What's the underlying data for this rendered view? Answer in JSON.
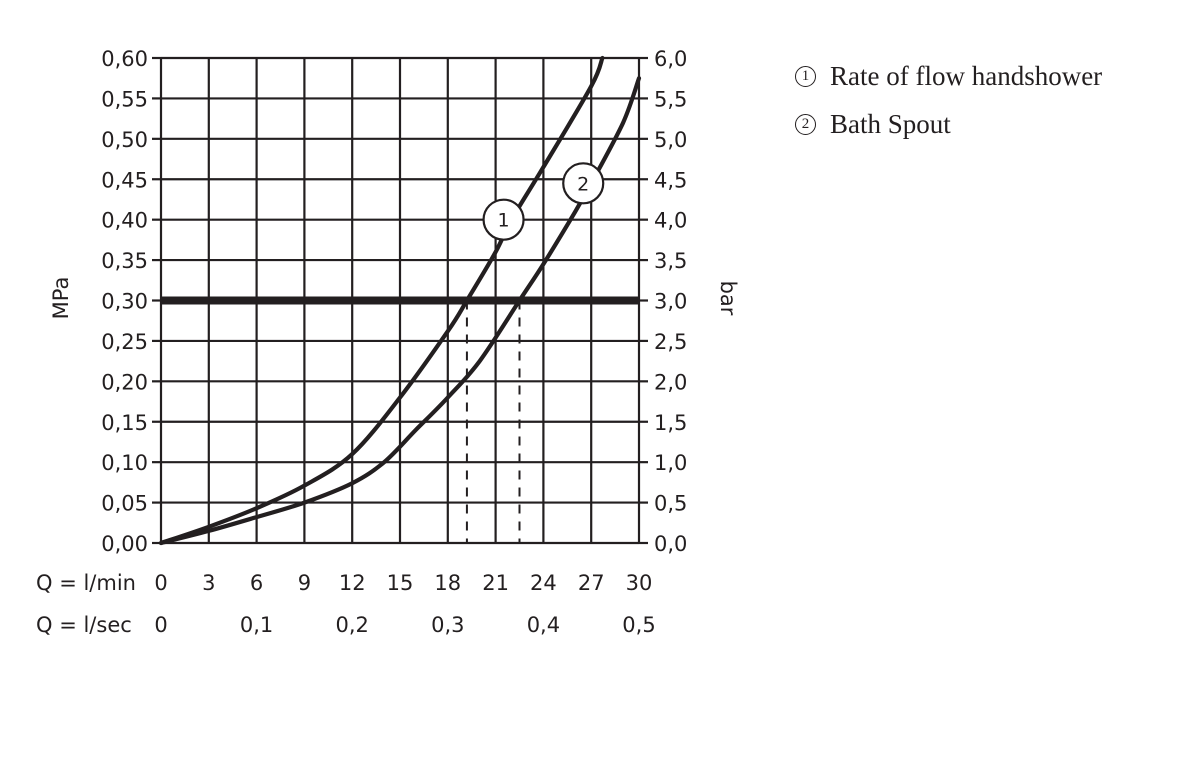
{
  "chart_data": {
    "type": "line",
    "x_labels": {
      "lmin_prefix": "Q = l/min",
      "lsec_prefix": "Q = l/sec",
      "lmin_ticks": [
        "0",
        "3",
        "6",
        "9",
        "12",
        "15",
        "18",
        "21",
        "24",
        "27",
        "30"
      ],
      "lsec_ticks": [
        "0",
        "0,1",
        "0,2",
        "0,3",
        "0,4",
        "0,5"
      ]
    },
    "xlim": [
      0,
      30
    ],
    "ylim": [
      0,
      0.6
    ],
    "ylabel_left": "MPa",
    "ylabel_right": "bar",
    "y_ticks_left": [
      "0,00",
      "0,05",
      "0,10",
      "0,15",
      "0,20",
      "0,25",
      "0,30",
      "0,35",
      "0,40",
      "0,45",
      "0,50",
      "0,55",
      "0,60"
    ],
    "y_ticks_right": [
      "0,0",
      "0,5",
      "1,0",
      "1,5",
      "2,0",
      "2,5",
      "3,0",
      "3,5",
      "4,0",
      "4,5",
      "5,0",
      "5,5",
      "6,0"
    ],
    "grid": true,
    "reference_line": {
      "y": 0.3
    },
    "series": [
      {
        "name": "Rate of flow handshower",
        "marker": "1",
        "x": [
          0,
          3,
          6,
          9,
          12,
          15,
          18,
          19.2,
          21,
          22,
          24,
          27,
          27.7
        ],
        "y": [
          0,
          0.02,
          0.043,
          0.071,
          0.11,
          0.18,
          0.262,
          0.3,
          0.36,
          0.4,
          0.465,
          0.565,
          0.6
        ]
      },
      {
        "name": "Bath Spout",
        "marker": "2",
        "x": [
          0,
          3,
          6,
          9,
          12,
          14,
          16,
          18,
          20,
          22.5,
          24,
          26,
          27,
          29,
          30
        ],
        "y": [
          0,
          0.015,
          0.032,
          0.05,
          0.074,
          0.1,
          0.14,
          0.18,
          0.225,
          0.3,
          0.345,
          0.41,
          0.445,
          0.52,
          0.575
        ]
      }
    ],
    "crossings": [
      {
        "series": "Rate of flow handshower",
        "x": 19.2,
        "y": 0.3
      },
      {
        "series": "Bath Spout",
        "x": 22.5,
        "y": 0.3
      }
    ],
    "marker_positions": [
      {
        "label": "1",
        "x": 21.5,
        "y": 0.4
      },
      {
        "label": "2",
        "x": 26.5,
        "y": 0.445
      }
    ],
    "legend": [
      {
        "marker": "①",
        "label": "Rate of flow handshower"
      },
      {
        "marker": "②",
        "label": "Bath Spout"
      }
    ]
  }
}
